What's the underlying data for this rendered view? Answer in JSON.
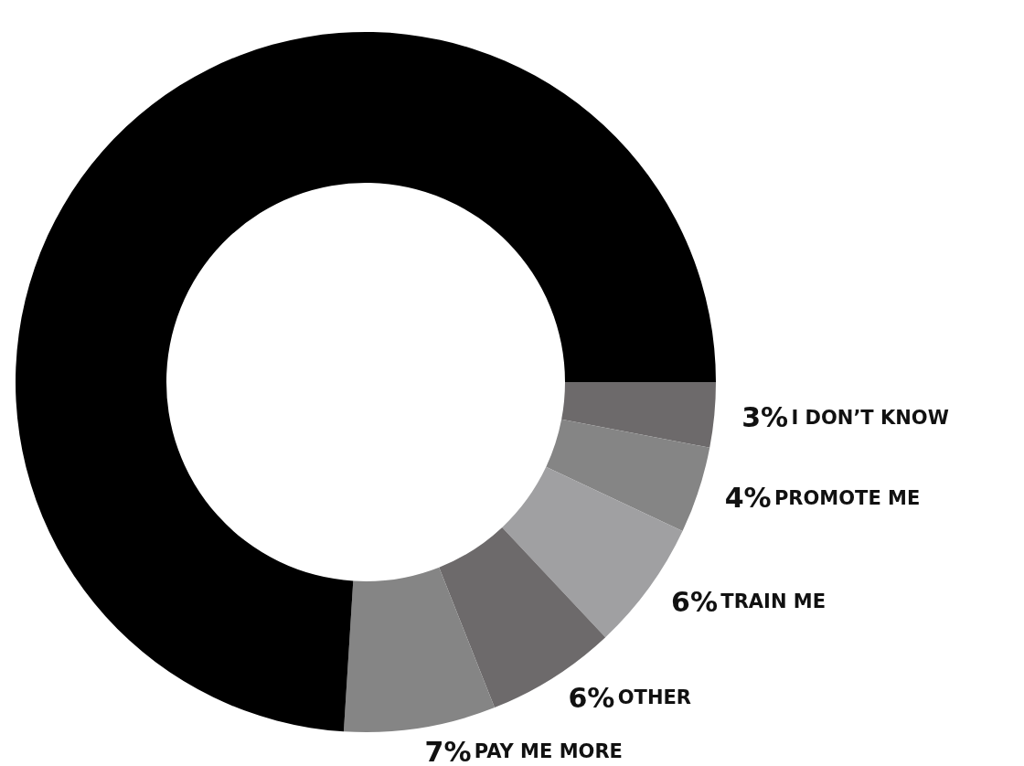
{
  "chart_data": {
    "type": "donut",
    "categories": [
      "I DON’T KNOW",
      "PROMOTE ME",
      "TRAIN ME",
      "OTHER",
      "PAY ME MORE",
      null
    ],
    "values": [
      3,
      4,
      6,
      6,
      7,
      74
    ],
    "value_labels": [
      "3%",
      "4%",
      "6%",
      "6%",
      "7%",
      null
    ],
    "colors": [
      "#6d6a6b",
      "#858585",
      "#a0a0a2",
      "#6d6a6b",
      "#858585",
      "#000000"
    ],
    "legend": false
  }
}
